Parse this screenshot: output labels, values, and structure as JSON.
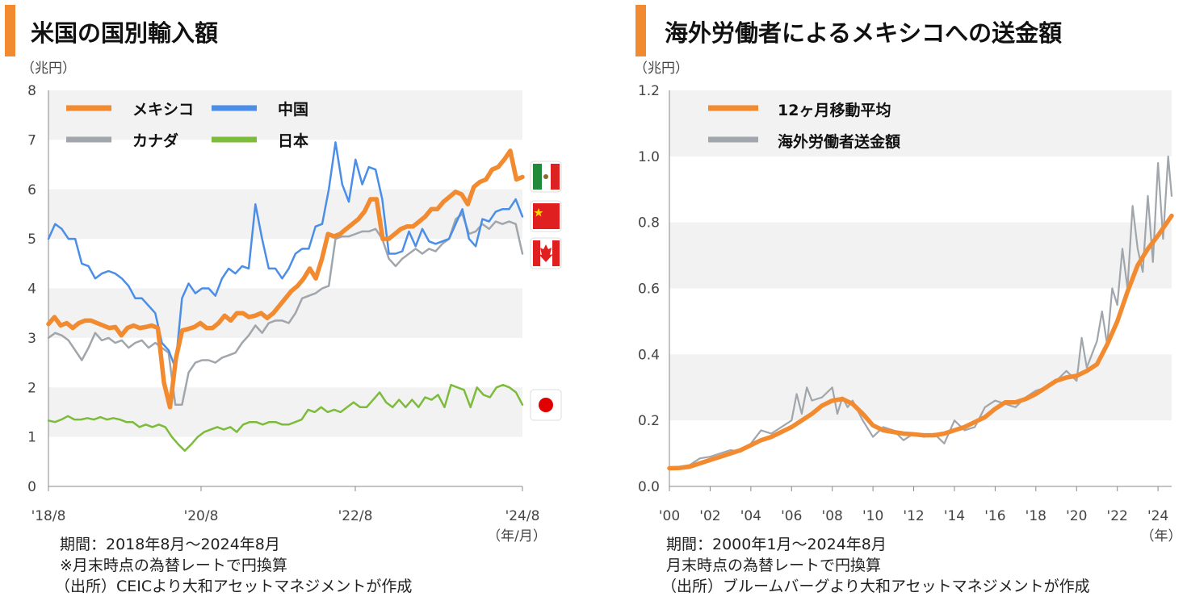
{
  "colors": {
    "accent": "#f28a30",
    "mexico": "#f28a30",
    "china": "#4a8ee8",
    "canada": "#a0a6ab",
    "japan": "#7dbb3a",
    "band": "#f2f2f2",
    "axis": "#888888"
  },
  "chart_data": [
    {
      "type": "line",
      "title": "米国の国別輸入額",
      "unit_label": "（兆円）",
      "xlabel": "（年/月）",
      "x_ticks": [
        "'18/8",
        "'20/8",
        "'22/8",
        "'24/8"
      ],
      "y_ticks": [
        "0",
        "1",
        "2",
        "3",
        "4",
        "5",
        "6",
        "7",
        "8"
      ],
      "ylim": [
        0,
        8
      ],
      "x_range": [
        "2018-08",
        "2024-08"
      ],
      "legend": [
        "メキシコ",
        "中国",
        "カナダ",
        "日本"
      ],
      "legend_placement": "top-left",
      "notes": [
        "期間：2018年8月～2024年8月",
        "※月末時点の為替レートで円換算",
        "（出所）CEICより大和アセットマネジメントが作成"
      ],
      "series": [
        {
          "name": "メキシコ",
          "color": "#f28a30",
          "values": [
            3.28,
            3.42,
            3.25,
            3.3,
            3.2,
            3.3,
            3.35,
            3.35,
            3.3,
            3.25,
            3.2,
            3.22,
            3.05,
            3.2,
            3.25,
            3.2,
            3.22,
            3.25,
            3.2,
            2.1,
            1.6,
            2.6,
            3.15,
            3.18,
            3.22,
            3.3,
            3.2,
            3.2,
            3.3,
            3.45,
            3.35,
            3.5,
            3.5,
            3.42,
            3.45,
            3.5,
            3.4,
            3.5,
            3.65,
            3.8,
            3.95,
            4.05,
            4.2,
            4.4,
            4.2,
            4.6,
            5.1,
            5.05,
            5.1,
            5.2,
            5.3,
            5.4,
            5.55,
            5.8,
            5.8,
            5.0,
            5.0,
            5.1,
            5.2,
            5.25,
            5.25,
            5.35,
            5.45,
            5.6,
            5.6,
            5.75,
            5.85,
            5.95,
            5.9,
            5.7,
            6.05,
            6.15,
            6.2,
            6.4,
            6.45,
            6.6,
            6.78,
            6.2,
            6.25
          ]
        },
        {
          "name": "中国",
          "color": "#4a8ee8",
          "values": [
            5.0,
            5.3,
            5.2,
            5.0,
            5.0,
            4.5,
            4.45,
            4.2,
            4.3,
            4.35,
            4.3,
            4.2,
            4.05,
            3.8,
            3.8,
            3.65,
            3.5,
            2.9,
            2.75,
            2.4,
            3.8,
            4.1,
            3.9,
            4.0,
            4.0,
            3.85,
            4.2,
            4.4,
            4.3,
            4.45,
            4.4,
            5.7,
            5.0,
            4.4,
            4.4,
            4.2,
            4.4,
            4.7,
            4.8,
            4.8,
            5.25,
            5.3,
            6.0,
            6.95,
            6.1,
            5.75,
            6.6,
            6.1,
            6.45,
            6.4,
            5.8,
            4.7,
            4.7,
            4.75,
            5.15,
            4.85,
            5.2,
            4.95,
            4.9,
            4.95,
            5.0,
            5.3,
            5.6,
            5.0,
            4.85,
            5.4,
            5.35,
            5.55,
            5.6,
            5.6,
            5.8,
            5.45
          ]
        },
        {
          "name": "カナダ",
          "color": "#a0a6ab",
          "values": [
            3.0,
            3.1,
            3.05,
            2.95,
            2.75,
            2.55,
            2.8,
            3.1,
            2.95,
            3.0,
            2.9,
            2.95,
            2.8,
            2.9,
            2.95,
            2.8,
            2.9,
            2.8,
            2.7,
            1.65,
            1.65,
            2.3,
            2.5,
            2.55,
            2.55,
            2.5,
            2.6,
            2.65,
            2.7,
            2.9,
            3.05,
            3.25,
            3.1,
            3.3,
            3.35,
            3.35,
            3.3,
            3.5,
            3.8,
            3.85,
            3.9,
            4.0,
            4.05,
            5.0,
            5.05,
            5.05,
            5.1,
            5.15,
            5.15,
            5.2,
            5.0,
            4.6,
            4.45,
            4.6,
            4.7,
            4.8,
            4.7,
            4.8,
            4.75,
            4.9,
            5.0,
            5.4,
            5.5,
            5.1,
            5.15,
            5.3,
            5.2,
            5.35,
            5.3,
            5.35,
            5.3,
            4.7
          ]
        },
        {
          "name": "日本",
          "color": "#7dbb3a",
          "values": [
            1.33,
            1.3,
            1.35,
            1.42,
            1.35,
            1.35,
            1.38,
            1.35,
            1.4,
            1.35,
            1.38,
            1.35,
            1.3,
            1.3,
            1.2,
            1.25,
            1.2,
            1.25,
            1.2,
            1.0,
            0.85,
            0.72,
            0.85,
            1.0,
            1.1,
            1.15,
            1.2,
            1.15,
            1.2,
            1.1,
            1.25,
            1.3,
            1.3,
            1.25,
            1.3,
            1.3,
            1.25,
            1.25,
            1.3,
            1.35,
            1.55,
            1.5,
            1.6,
            1.5,
            1.55,
            1.5,
            1.6,
            1.7,
            1.6,
            1.6,
            1.75,
            1.9,
            1.7,
            1.6,
            1.75,
            1.6,
            1.75,
            1.6,
            1.8,
            1.75,
            1.85,
            1.6,
            2.05,
            2.0,
            1.95,
            1.6,
            2.0,
            1.85,
            1.8,
            2.0,
            2.05,
            2.0,
            1.9,
            1.65
          ]
        }
      ]
    },
    {
      "type": "line",
      "title": "海外労働者によるメキシコへの送金額",
      "unit_label": "（兆円）",
      "xlabel": "（年）",
      "x_ticks": [
        "'00",
        "'02",
        "'04",
        "'06",
        "'08",
        "'10",
        "'12",
        "'14",
        "'16",
        "'18",
        "'20",
        "'22",
        "'24"
      ],
      "y_ticks": [
        "0.0",
        "0.2",
        "0.4",
        "0.6",
        "0.8",
        "1.0",
        "1.2"
      ],
      "ylim": [
        0,
        1.2
      ],
      "x_range": [
        2000,
        2024.67
      ],
      "legend": [
        "12ヶ月移動平均",
        "海外労働者送金額"
      ],
      "legend_placement": "top-left",
      "notes": [
        "期間：2000年1月～2024年8月",
        "月末時点の為替レートで円換算",
        "（出所）ブルームバーグより大和アセットマネジメントが作成"
      ],
      "series": [
        {
          "name": "12ヶ月移動平均",
          "color": "#f28a30",
          "x": [
            2000,
            2000.5,
            2001,
            2001.5,
            2002,
            2002.5,
            2003,
            2003.5,
            2004,
            2004.5,
            2005,
            2005.5,
            2006,
            2006.5,
            2007,
            2007.5,
            2008,
            2008.5,
            2009,
            2009.5,
            2010,
            2010.5,
            2011,
            2011.5,
            2012,
            2012.5,
            2013,
            2013.5,
            2014,
            2014.5,
            2015,
            2015.5,
            2016,
            2016.5,
            2017,
            2017.5,
            2018,
            2018.5,
            2019,
            2019.5,
            2020,
            2020.5,
            2021,
            2021.5,
            2022,
            2022.5,
            2023,
            2023.5,
            2024,
            2024.67
          ],
          "values": [
            0.055,
            0.056,
            0.06,
            0.07,
            0.08,
            0.09,
            0.1,
            0.11,
            0.125,
            0.14,
            0.15,
            0.165,
            0.18,
            0.2,
            0.22,
            0.245,
            0.26,
            0.265,
            0.25,
            0.22,
            0.185,
            0.17,
            0.165,
            0.16,
            0.158,
            0.155,
            0.155,
            0.16,
            0.17,
            0.18,
            0.195,
            0.21,
            0.235,
            0.255,
            0.255,
            0.265,
            0.28,
            0.3,
            0.32,
            0.33,
            0.335,
            0.35,
            0.37,
            0.43,
            0.5,
            0.59,
            0.67,
            0.72,
            0.76,
            0.82
          ]
        },
        {
          "name": "海外労働者送金額",
          "color": "#a0a6ab",
          "x": [
            2000,
            2000.5,
            2001,
            2001.5,
            2002,
            2002.5,
            2003,
            2003.5,
            2004,
            2004.5,
            2005,
            2005.5,
            2006,
            2006.25,
            2006.5,
            2006.75,
            2007,
            2007.5,
            2008,
            2008.25,
            2008.5,
            2008.75,
            2009,
            2009.5,
            2010,
            2010.5,
            2011,
            2011.5,
            2012,
            2012.5,
            2013,
            2013.5,
            2014,
            2014.5,
            2015,
            2015.5,
            2016,
            2016.5,
            2017,
            2017.5,
            2018,
            2018.5,
            2019,
            2019.5,
            2020,
            2020.25,
            2020.5,
            2020.75,
            2021,
            2021.25,
            2021.5,
            2021.75,
            2022,
            2022.25,
            2022.5,
            2022.75,
            2023,
            2023.25,
            2023.5,
            2023.75,
            2024,
            2024.25,
            2024.5,
            2024.67
          ],
          "values": [
            0.055,
            0.06,
            0.065,
            0.085,
            0.09,
            0.1,
            0.11,
            0.105,
            0.13,
            0.17,
            0.16,
            0.18,
            0.2,
            0.28,
            0.22,
            0.3,
            0.26,
            0.27,
            0.3,
            0.22,
            0.27,
            0.24,
            0.26,
            0.2,
            0.15,
            0.18,
            0.17,
            0.14,
            0.16,
            0.15,
            0.16,
            0.13,
            0.2,
            0.17,
            0.18,
            0.24,
            0.26,
            0.25,
            0.24,
            0.27,
            0.29,
            0.3,
            0.32,
            0.35,
            0.32,
            0.45,
            0.36,
            0.4,
            0.44,
            0.53,
            0.43,
            0.6,
            0.55,
            0.72,
            0.6,
            0.85,
            0.72,
            0.65,
            0.88,
            0.68,
            0.98,
            0.75,
            1.0,
            0.88
          ]
        }
      ]
    }
  ]
}
